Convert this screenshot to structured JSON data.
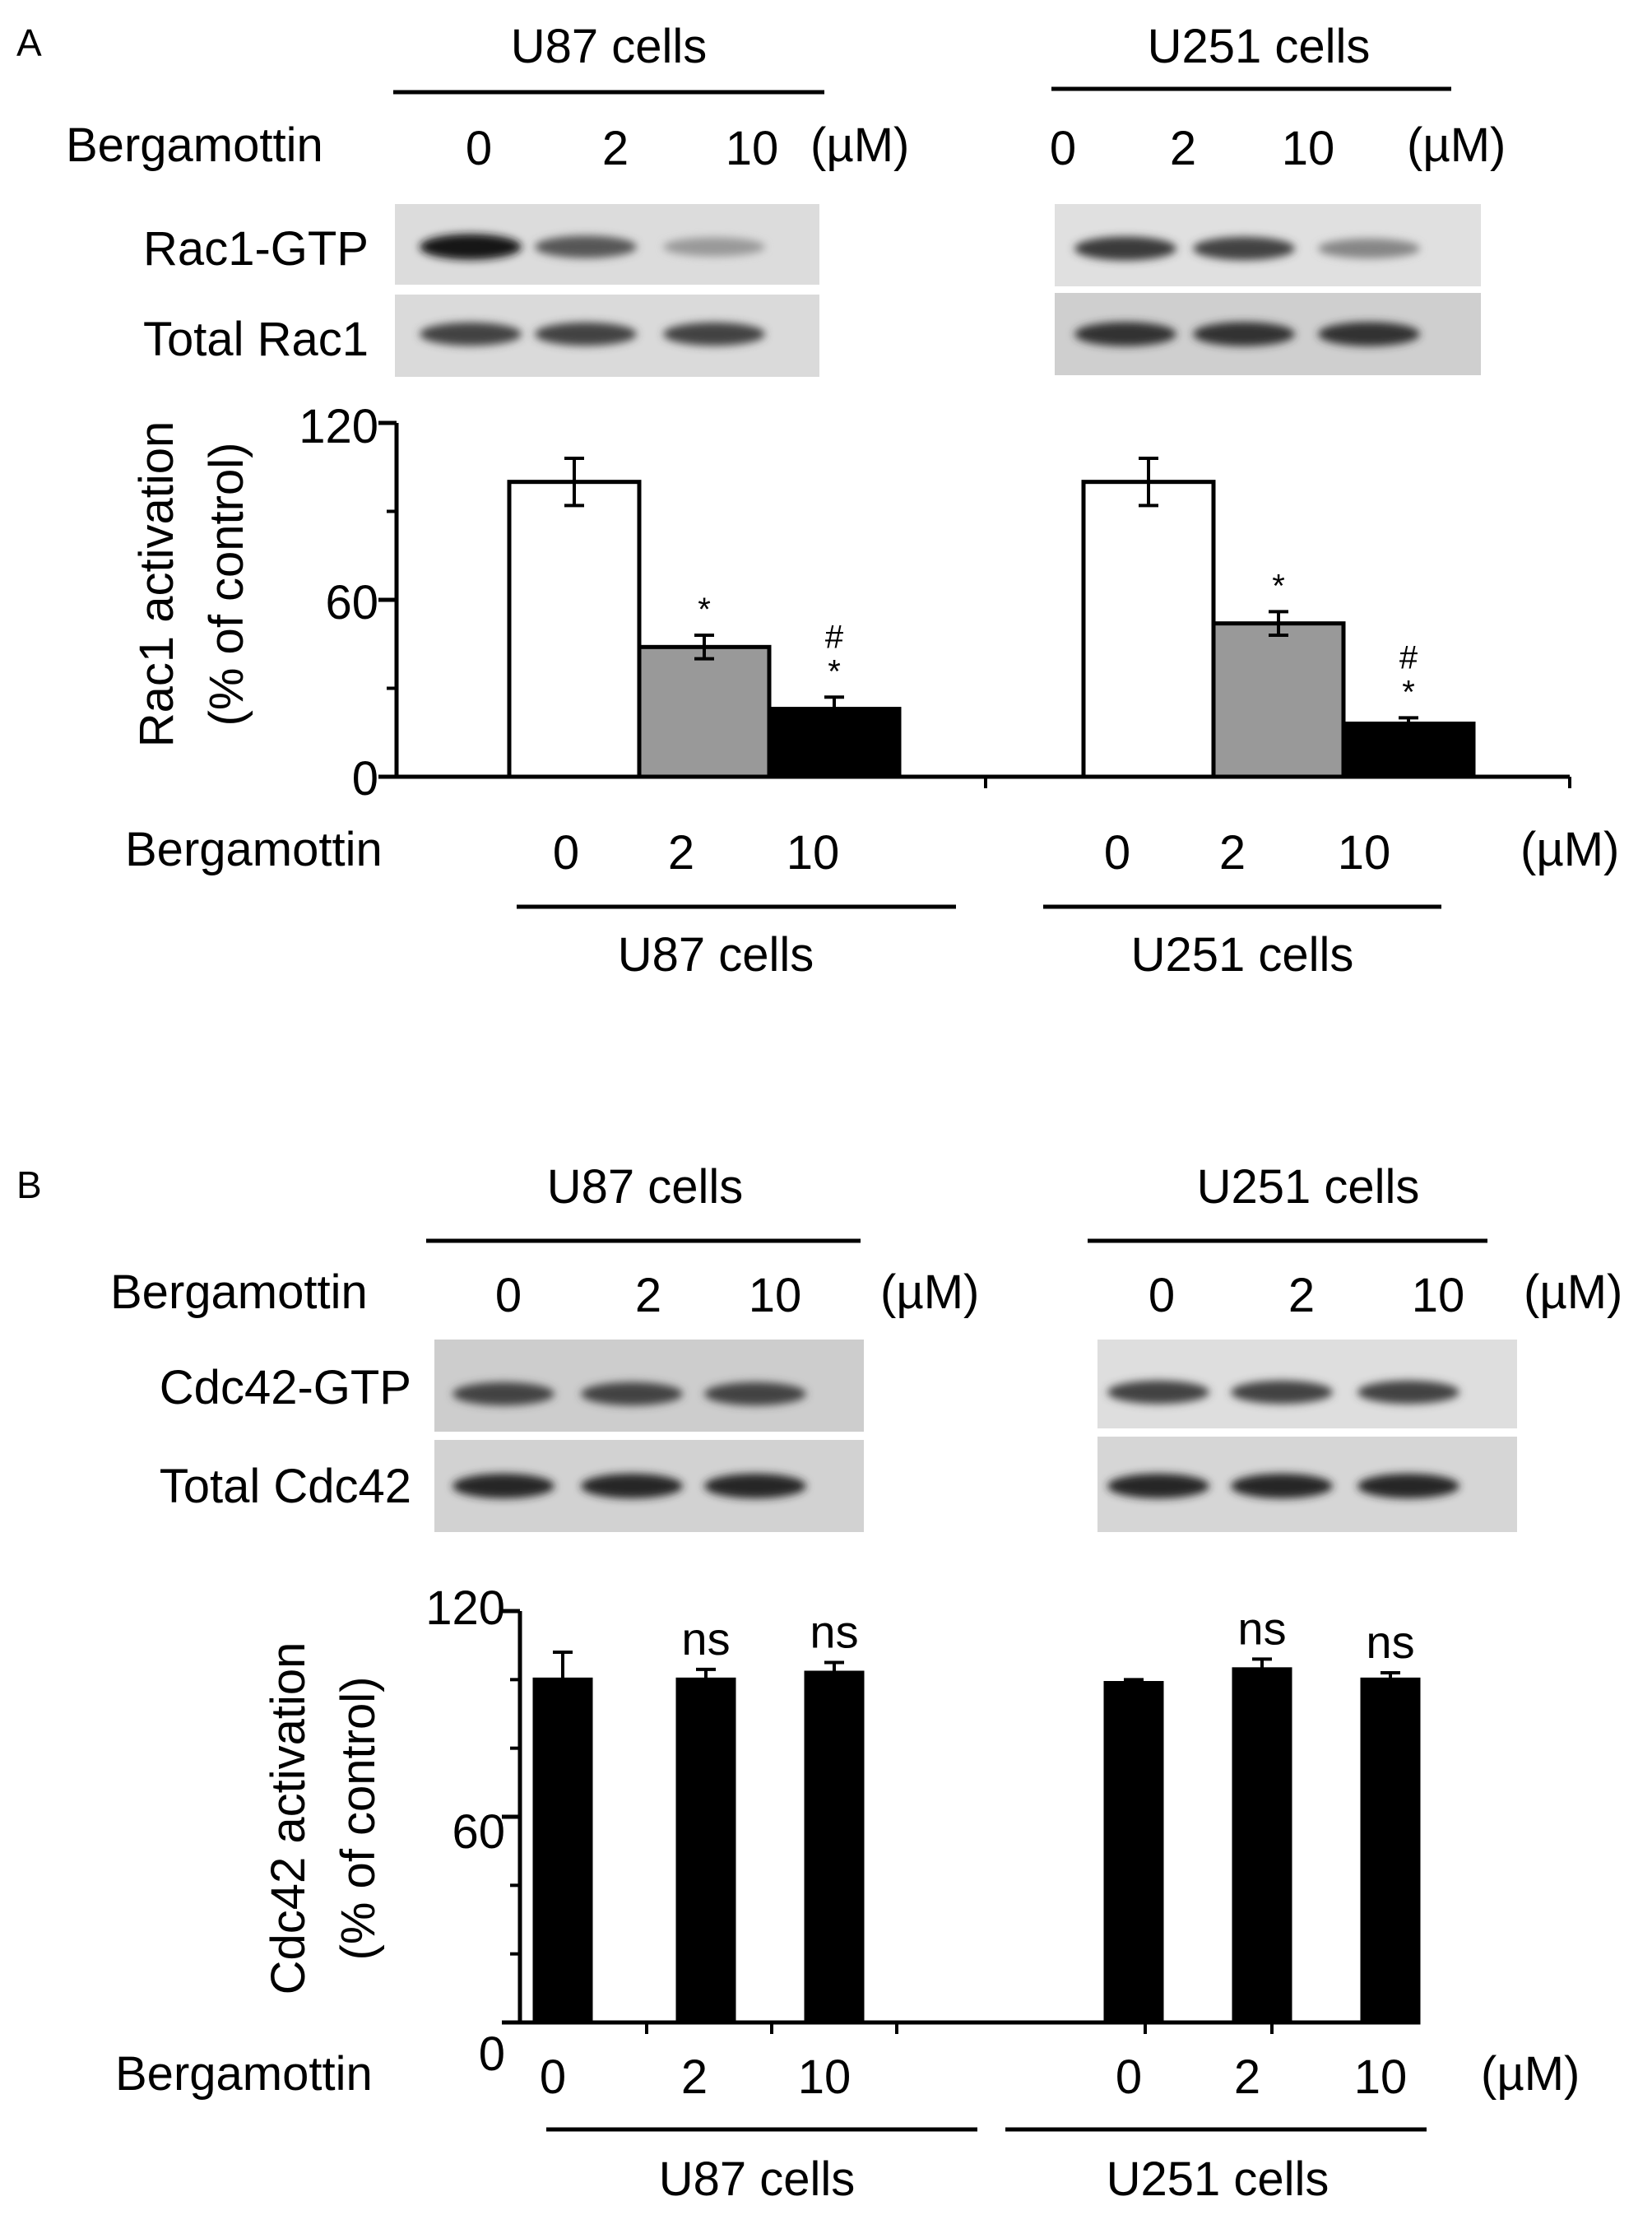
{
  "panel_a": {
    "letter": "A",
    "blot": {
      "groups": [
        {
          "name": "U87 cells",
          "doses": [
            "0",
            "2",
            "10"
          ],
          "unit": "(µM)"
        },
        {
          "name": "U251 cells",
          "doses": [
            "0",
            "2",
            "10"
          ],
          "unit": "(µM)"
        }
      ],
      "treatment_label": "Bergamottin",
      "rows": [
        "Rac1-GTP",
        "Total Rac1"
      ],
      "band_intensity": {
        "U87 cells": [
          [
            0.95,
            0.6,
            0.25
          ],
          [
            0.7,
            0.7,
            0.7
          ]
        ],
        "U251 cells": [
          [
            0.75,
            0.7,
            0.35
          ],
          [
            0.8,
            0.8,
            0.8
          ]
        ]
      }
    },
    "x_treatment_label": "Bergamottin",
    "unit_label": "(µM)"
  },
  "panel_b": {
    "letter": "B",
    "blot": {
      "groups": [
        {
          "name": "U87 cells",
          "doses": [
            "0",
            "2",
            "10"
          ],
          "unit": "(µM)"
        },
        {
          "name": "U251 cells",
          "doses": [
            "0",
            "2",
            "10"
          ],
          "unit": "(µM)"
        }
      ],
      "treatment_label": "Bergamottin",
      "rows": [
        "Cdc42-GTP",
        "Total Cdc42"
      ],
      "band_intensity": {
        "U87 cells": [
          [
            0.7,
            0.7,
            0.7
          ],
          [
            0.85,
            0.85,
            0.85
          ]
        ],
        "U251 cells": [
          [
            0.7,
            0.7,
            0.7
          ],
          [
            0.85,
            0.85,
            0.85
          ]
        ]
      }
    },
    "x_treatment_label": "Bergamottin",
    "unit_label": "(µM)"
  },
  "chart_data": [
    {
      "type": "bar",
      "ylabel": "Rac1 activation (% of control)",
      "ylabel_lines": [
        "Rac1 activation",
        "(% of control)"
      ],
      "ylim": [
        0,
        120
      ],
      "yticks": [
        "0",
        "60",
        "120"
      ],
      "grid": false,
      "groups": [
        {
          "name": "U87 cells",
          "categories": [
            "0",
            "2",
            "10"
          ],
          "values": [
            100,
            44,
            23
          ],
          "errors": [
            8,
            4,
            4
          ],
          "fills": [
            "#ffffff",
            "#999999",
            "#000000"
          ],
          "annotations": [
            "",
            "*",
            "#\n*"
          ]
        },
        {
          "name": "U251 cells",
          "categories": [
            "0",
            "2",
            "10"
          ],
          "values": [
            100,
            52,
            18
          ],
          "errors": [
            8,
            4,
            2
          ],
          "fills": [
            "#ffffff",
            "#999999",
            "#000000"
          ],
          "annotations": [
            "",
            "*",
            "#\n*"
          ]
        }
      ]
    },
    {
      "type": "bar",
      "ylabel": "Cdc42 activation (% of control)",
      "ylabel_lines": [
        "Cdc42 activation",
        "(% of control)"
      ],
      "ylim": [
        0,
        120
      ],
      "yticks": [
        "0",
        "60",
        "120"
      ],
      "grid": false,
      "groups": [
        {
          "name": "U87 cells",
          "categories": [
            "0",
            "2",
            "10"
          ],
          "values": [
            100,
            100,
            102
          ],
          "errors": [
            8,
            3,
            3
          ],
          "fills": [
            "#000000",
            "#000000",
            "#000000"
          ],
          "annotations": [
            "",
            "ns",
            "ns"
          ]
        },
        {
          "name": "U251 cells",
          "categories": [
            "0",
            "2",
            "10"
          ],
          "values": [
            99,
            103,
            100
          ],
          "errors": [
            1,
            3,
            2
          ],
          "fills": [
            "#000000",
            "#000000",
            "#000000"
          ],
          "annotations": [
            "",
            "ns",
            "ns"
          ]
        }
      ]
    }
  ]
}
